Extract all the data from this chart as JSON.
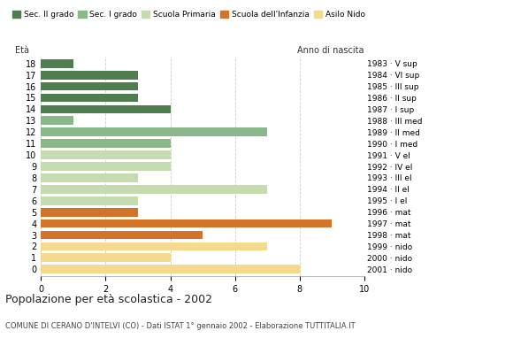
{
  "ages": [
    18,
    17,
    16,
    15,
    14,
    13,
    12,
    11,
    10,
    9,
    8,
    7,
    6,
    5,
    4,
    3,
    2,
    1,
    0
  ],
  "values": [
    1,
    3,
    3,
    3,
    4,
    1,
    7,
    4,
    4,
    4,
    3,
    7,
    3,
    3,
    9,
    5,
    7,
    4,
    8
  ],
  "right_labels": [
    "1983 · V sup",
    "1984 · VI sup",
    "1985 · III sup",
    "1986 · II sup",
    "1987 · I sup",
    "1988 · III med",
    "1989 · II med",
    "1990 · I med",
    "1991 · V el",
    "1992 · IV el",
    "1993 · III el",
    "1994 · II el",
    "1995 · I el",
    "1996 · mat",
    "1997 · mat",
    "1998 · mat",
    "1999 · nido",
    "2000 · nido",
    "2001 · nido"
  ],
  "colors": {
    "Sec. II grado": "#507d50",
    "Sec. I grado": "#8ab88a",
    "Scuola Primaria": "#c5dbb0",
    "Scuola dell'Infanzia": "#d4732a",
    "Asilo Nido": "#f5d98c"
  },
  "age_categories": {
    "14": "Sec. II grado",
    "15": "Sec. II grado",
    "16": "Sec. II grado",
    "17": "Sec. II grado",
    "18": "Sec. II grado",
    "11": "Sec. I grado",
    "12": "Sec. I grado",
    "13": "Sec. I grado",
    "6": "Scuola Primaria",
    "7": "Scuola Primaria",
    "8": "Scuola Primaria",
    "9": "Scuola Primaria",
    "10": "Scuola Primaria",
    "3": "Scuola dell'Infanzia",
    "4": "Scuola dell'Infanzia",
    "5": "Scuola dell'Infanzia",
    "0": "Asilo Nido",
    "1": "Asilo Nido",
    "2": "Asilo Nido"
  },
  "legend_labels": [
    "Sec. II grado",
    "Sec. I grado",
    "Scuola Primaria",
    "Scuola dell'Infanzia",
    "Asilo Nido"
  ],
  "title": "Popolazione per età scolastica - 2002",
  "subtitle": "COMUNE DI CERANO D'INTELVI (CO) - Dati ISTAT 1° gennaio 2002 - Elaborazione TUTTITALIA.IT",
  "label_left": "Età",
  "label_right": "Anno di nascita",
  "xlim": [
    0,
    10
  ],
  "xticks": [
    0,
    2,
    4,
    6,
    8,
    10
  ],
  "background_color": "#ffffff",
  "grid_color": "#cccccc"
}
